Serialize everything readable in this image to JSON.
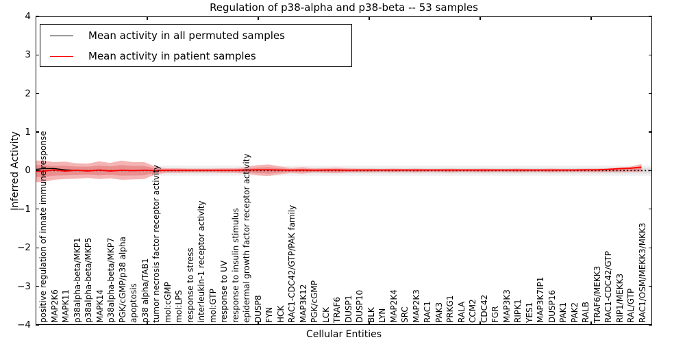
{
  "title": "Regulation of p38-alpha and p38-beta -- 53 samples",
  "legend": {
    "items": [
      {
        "label": "Mean activity in all permuted samples",
        "color": "#000000"
      },
      {
        "label": "Mean activity in patient samples",
        "color": "#ff0000"
      }
    ]
  },
  "axes": {
    "ylabel": "Inferred Activity",
    "xlabel": "Cellular Entities",
    "yticks": [
      {
        "value": 4,
        "label": "4"
      },
      {
        "value": 3,
        "label": "3"
      },
      {
        "value": 2,
        "label": "2"
      },
      {
        "value": 1,
        "label": "1"
      },
      {
        "value": 0,
        "label": "0"
      },
      {
        "value": -1,
        "label": "−1"
      },
      {
        "value": -2,
        "label": "−2"
      },
      {
        "value": -3,
        "label": "−3"
      },
      {
        "value": -4,
        "label": "−4"
      }
    ]
  },
  "chart_data": {
    "type": "line",
    "title": "Regulation of p38-alpha and p38-beta -- 53 samples",
    "xlabel": "Cellular Entities",
    "ylabel": "Inferred Activity",
    "ylim": [
      -4,
      4
    ],
    "grid": false,
    "legend_position": "upper left",
    "categories": [
      "positive regulation of innate immune response",
      "MAP2K6",
      "MAPK11",
      "p38alpha-beta/MKP1",
      "p38alpha-beta/MKP5",
      "MAPK14",
      "p38alpha-beta/MKP7",
      "PGK/cGMP/p38 alpha",
      "apoptosis",
      "p38 alpha/TAB1",
      "tumor necrosis factor receptor activity",
      "mol:cGMP",
      "mol:LPS",
      "response to stress",
      "interleukin-1 receptor activity",
      "mol:GTP",
      "response to UV",
      "response to insulin stimulus",
      "epidermal growth factor receptor activity",
      "DUSP8",
      "FYN",
      "HCK",
      "RAC1-CDC42/GTP/PAK family",
      "MAP3K12",
      "PGK/cGMP",
      "LCK",
      "TRAF6",
      "DUSP1",
      "DUSP10",
      "BLK",
      "LYN",
      "MAP2K4",
      "SRC",
      "MAP2K3",
      "RAC1",
      "PAK3",
      "PRKG1",
      "RALA",
      "CCM2",
      "CDC42",
      "FGR",
      "MAP3K3",
      "RIPK1",
      "YES1",
      "MAP3K7IP1",
      "DUSP16",
      "PAK1",
      "PAK2",
      "RALB",
      "TRAF6/MEKK3",
      "RAC1-CDC42/GTP",
      "RIP1/MEKK3",
      "RAL/GTP",
      "RAC1/OSM/MEKK3/MKK3"
    ],
    "series": [
      {
        "name": "Mean activity in all permuted samples",
        "color": "#000000",
        "values": [
          0.05,
          0.055,
          0.02,
          0.005,
          0,
          0,
          0,
          0,
          0,
          0,
          0,
          0,
          0,
          0,
          0,
          0,
          0,
          0,
          0,
          0,
          0,
          0,
          0,
          0,
          0,
          0,
          0,
          0,
          0,
          0,
          0,
          0,
          0,
          0,
          0,
          0,
          0,
          0,
          0,
          0,
          0,
          0,
          0,
          0,
          0,
          0,
          0,
          0,
          0,
          0,
          0,
          0,
          0,
          0
        ]
      },
      {
        "name": "Mean activity in patient samples",
        "color": "#ff0000",
        "values": [
          -0.02,
          0.02,
          -0.015,
          0.01,
          -0.01,
          0.015,
          -0.01,
          0.01,
          0,
          0.01,
          0,
          0.01,
          0.01,
          0.01,
          0.01,
          0.01,
          0.01,
          0.01,
          0.015,
          0.02,
          0.02,
          0.015,
          0.01,
          0.015,
          0.01,
          0.015,
          0.015,
          0.01,
          0.015,
          0.015,
          0.015,
          0.015,
          0.015,
          0.015,
          0.015,
          0.015,
          0.015,
          0.015,
          0.015,
          0.015,
          0.015,
          0.015,
          0.015,
          0.015,
          0.015,
          0.015,
          0.015,
          0.015,
          0.02,
          0.02,
          0.03,
          0.05,
          0.06,
          0.09
        ]
      }
    ],
    "patient_band": {
      "top": [
        0.26,
        0.22,
        0.23,
        0.19,
        0.18,
        0.24,
        0.2,
        0.26,
        0.22,
        0.22,
        0.1,
        0.06,
        0.06,
        0.05,
        0.05,
        0.05,
        0.06,
        0.06,
        0.09,
        0.14,
        0.16,
        0.11,
        0.07,
        0.09,
        0.06,
        0.07,
        0.08,
        0.06,
        0.05,
        0.05,
        0.04,
        0.05,
        0.04,
        0.05,
        0.04,
        0.04,
        0.05,
        0.04,
        0.04,
        0.05,
        0.04,
        0.04,
        0.05,
        0.04,
        0.04,
        0.05,
        0.04,
        0.04,
        0.05,
        0.05,
        0.06,
        0.08,
        0.1,
        0.17
      ],
      "bottom": [
        -0.3,
        -0.24,
        -0.22,
        -0.21,
        -0.19,
        -0.22,
        -0.2,
        -0.24,
        -0.23,
        -0.22,
        -0.1,
        -0.06,
        -0.06,
        -0.05,
        -0.05,
        -0.05,
        -0.06,
        -0.06,
        -0.08,
        -0.12,
        -0.14,
        -0.1,
        -0.06,
        -0.08,
        -0.05,
        -0.06,
        -0.07,
        -0.05,
        -0.05,
        -0.05,
        -0.04,
        -0.05,
        -0.04,
        -0.05,
        -0.04,
        -0.04,
        -0.05,
        -0.04,
        -0.04,
        -0.05,
        -0.04,
        -0.04,
        -0.05,
        -0.04,
        -0.04,
        -0.05,
        -0.04,
        -0.04,
        -0.04,
        -0.04,
        -0.04,
        -0.04,
        -0.03,
        -0.03
      ],
      "outer_color": "#f4b4b4",
      "inner_color": "#e98f8f",
      "inner_scale": 0.55
    },
    "permuted_band": {
      "half_width_outer": 0.13,
      "half_width_inner": 0.07,
      "outer_color": "#f0f0f0",
      "inner_color": "#e0e0e0"
    },
    "zero_line": {
      "style": "dotted",
      "color": "#111111"
    },
    "line_colors": {
      "patient": "#ff0000",
      "permuted": "#000000"
    }
  }
}
